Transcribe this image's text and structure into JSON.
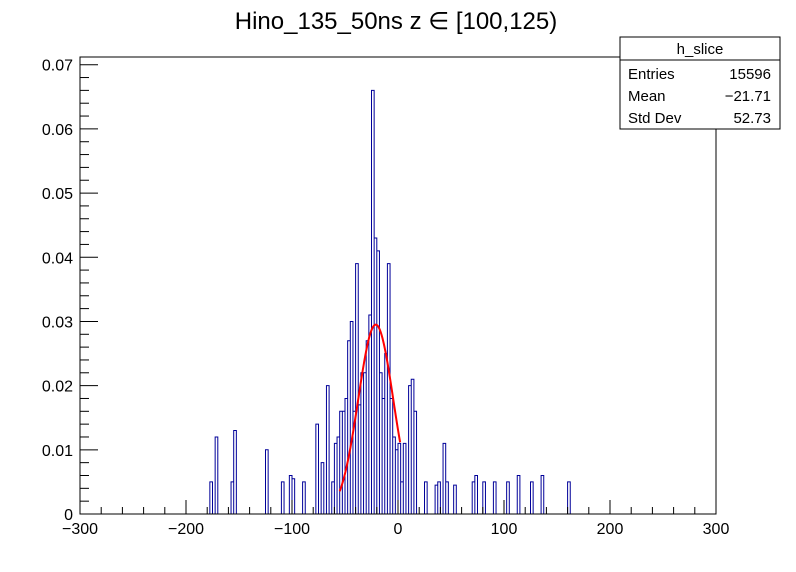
{
  "chart_data": {
    "type": "histogram",
    "title": "Hino_135_50ns z  ∈ [100,125)",
    "xlabel": "",
    "ylabel": "",
    "xlim": [
      -300,
      300
    ],
    "ylim": [
      0,
      0.0712
    ],
    "x_ticks": [
      -300,
      -200,
      -100,
      0,
      100,
      200,
      300
    ],
    "y_ticks": [
      0,
      0.01,
      0.02,
      0.03,
      0.04,
      0.05,
      0.06,
      0.07
    ],
    "x_tick_labels": [
      "−300",
      "−200",
      "−100",
      "0",
      "100",
      "200",
      "300"
    ],
    "y_tick_labels": [
      "0",
      "0.01",
      "0.02",
      "0.03",
      "0.04",
      "0.05",
      "0.06",
      "0.07"
    ],
    "grid": false,
    "bin_width": 2.5,
    "series": [
      {
        "bins": [
          [
            -177.5,
            0.005
          ],
          [
            -172.5,
            0.012
          ],
          [
            -157.5,
            0.005
          ],
          [
            -155,
            0.013
          ],
          [
            -125,
            0.01
          ],
          [
            -110,
            0.005
          ],
          [
            -102.5,
            0.006
          ],
          [
            -100,
            0.0055
          ],
          [
            -90,
            0.005
          ],
          [
            -77.5,
            0.014
          ],
          [
            -72.5,
            0.008
          ],
          [
            -67.5,
            0.02
          ],
          [
            -62.5,
            0.005
          ],
          [
            -60,
            0.011
          ],
          [
            -57.5,
            0.012
          ],
          [
            -55,
            0.016
          ],
          [
            -52.5,
            0.016
          ],
          [
            -50,
            0.018
          ],
          [
            -47.5,
            0.027
          ],
          [
            -45,
            0.03
          ],
          [
            -42.5,
            0.016
          ],
          [
            -40,
            0.039
          ],
          [
            -37.5,
            0.017
          ],
          [
            -35,
            0.022
          ],
          [
            -32.5,
            0.022
          ],
          [
            -30,
            0.027
          ],
          [
            -27.5,
            0.031
          ],
          [
            -25,
            0.066
          ],
          [
            -22.5,
            0.043
          ],
          [
            -20,
            0.041
          ],
          [
            -17.5,
            0.022
          ],
          [
            -15,
            0.018
          ],
          [
            -12.5,
            0.025
          ],
          [
            -10,
            0.039
          ],
          [
            -7.5,
            0.018
          ],
          [
            -5,
            0.012
          ],
          [
            -2.5,
            0.01
          ],
          [
            0,
            0.011
          ],
          [
            2.5,
            0.005
          ],
          [
            5,
            0.011
          ],
          [
            10,
            0.02
          ],
          [
            12.5,
            0.021
          ],
          [
            15,
            0.016
          ],
          [
            25,
            0.005
          ],
          [
            35,
            0.0045
          ],
          [
            37.5,
            0.005
          ],
          [
            42.5,
            0.011
          ],
          [
            45,
            0.005
          ],
          [
            52.5,
            0.0045
          ],
          [
            70,
            0.005
          ],
          [
            72.5,
            0.006
          ],
          [
            80,
            0.005
          ],
          [
            90,
            0.005
          ],
          [
            102.5,
            0.005
          ],
          [
            112.5,
            0.006
          ],
          [
            125,
            0.005
          ],
          [
            135,
            0.006
          ],
          [
            160,
            0.005
          ]
        ],
        "color": "#000099"
      },
      {
        "type": "gaussian_fit",
        "amplitude": 0.0295,
        "mean": -21,
        "sigma": 16.5,
        "x_range": [
          -55,
          2
        ],
        "color": "#ff0000"
      }
    ],
    "stats_box": {
      "title": "h_slice",
      "rows": [
        {
          "label": "Entries",
          "value": "15596"
        },
        {
          "label": "Mean",
          "value": "−21.71"
        },
        {
          "label": "Std Dev",
          "value": "52.73"
        }
      ]
    }
  }
}
